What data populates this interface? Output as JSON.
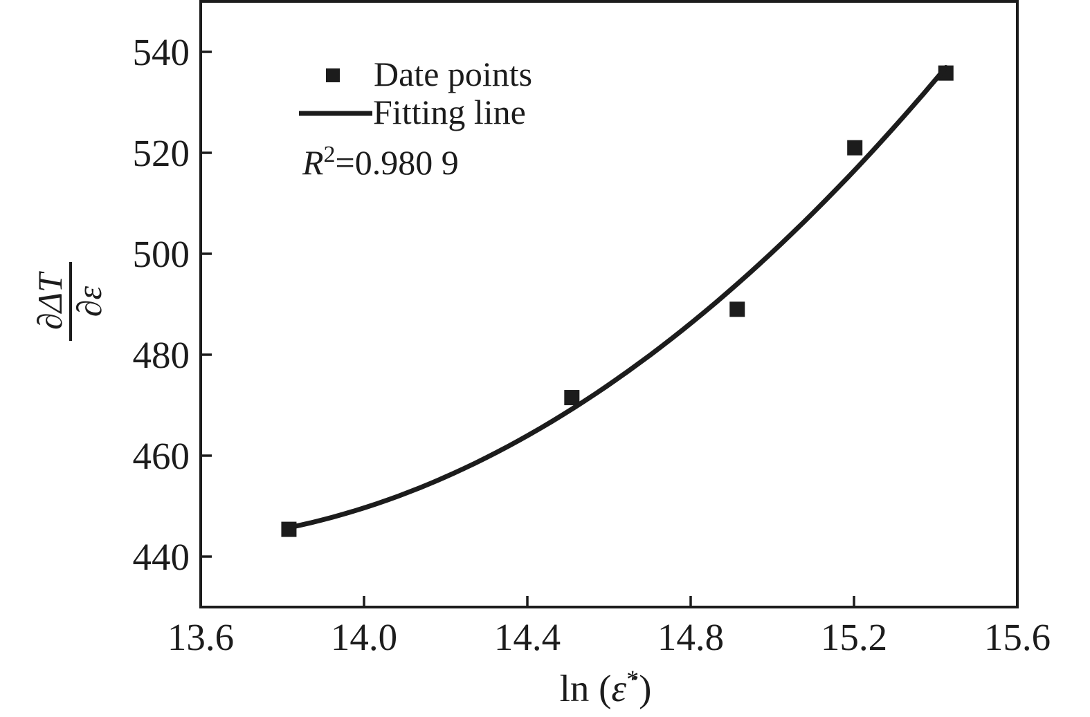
{
  "figure": {
    "background": "#ffffff",
    "ink_color": "#1c1c1c"
  },
  "chart_data": {
    "type": "scatter",
    "title": "",
    "xlabel": {
      "prefix": "ln (",
      "symbol": "ε̇",
      "sup": "*",
      "suffix": ")"
    },
    "ylabel": {
      "numerator": "∂ΔT",
      "denominator": "∂ε"
    },
    "xlim": [
      13.6,
      15.6
    ],
    "ylim": [
      430,
      550
    ],
    "xticks": [
      13.6,
      14.0,
      14.4,
      14.8,
      15.2,
      15.6
    ],
    "xtick_labels": [
      "13.6",
      "14.0",
      "14.4",
      "14.8",
      "15.2",
      "15.6"
    ],
    "yticks": [
      440,
      460,
      480,
      500,
      520,
      540
    ],
    "ytick_labels": [
      "440",
      "460",
      "480",
      "500",
      "520",
      "540"
    ],
    "grid": false,
    "legend": {
      "position": "top-left-inside",
      "entries": [
        {
          "label": "Date points",
          "swatch": "square-marker"
        },
        {
          "label": "Fitting line",
          "swatch": "line"
        }
      ]
    },
    "annotation": {
      "r_symbol": "R",
      "r_sup": "2",
      "r_rest": "=0.980 9",
      "display": "R²=0.980 9"
    },
    "series": [
      {
        "name": "Date points",
        "type": "scatter",
        "marker": "square",
        "marker_color": "#1c1c1c",
        "points": [
          [
            13.816,
            445.4
          ],
          [
            14.509,
            471.5
          ],
          [
            14.914,
            489.0
          ],
          [
            15.202,
            521.0
          ],
          [
            15.425,
            535.8
          ]
        ]
      },
      {
        "name": "Fitting line",
        "type": "fit-curve",
        "line_color": "#1c1c1c",
        "fit": {
          "kind": "quadratic",
          "x_center": 14.773,
          "c0": 484.45,
          "c1": 64.25,
          "c2": 24.87,
          "x_start": 13.816,
          "x_end": 15.425
        }
      }
    ]
  }
}
